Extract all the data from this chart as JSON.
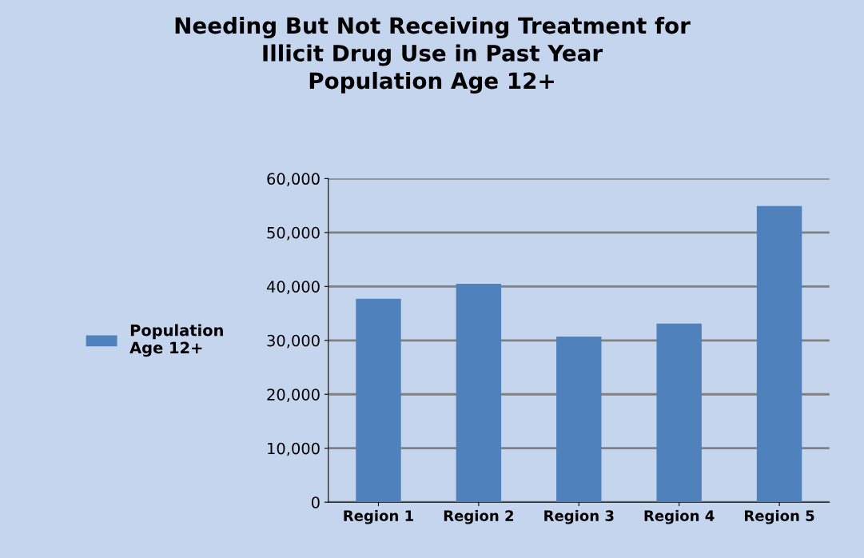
{
  "chart_data": {
    "type": "bar",
    "title": "Needing But Not Receiving Treatment for\nIllicit Drug Use in Past Year\nPopulation Age 12+",
    "categories": [
      "Region 1",
      "Region 2",
      "Region 3",
      "Region 4",
      "Region 5"
    ],
    "series": [
      {
        "name": "Population\nAge 12+",
        "color": "#4f81bd",
        "values": [
          37700,
          40500,
          30700,
          33100,
          54900
        ]
      }
    ],
    "ylim": [
      0,
      60000
    ],
    "yticks": [
      {
        "value": 0,
        "label": "0"
      },
      {
        "value": 10000,
        "label": "10,000"
      },
      {
        "value": 20000,
        "label": "20,000"
      },
      {
        "value": 30000,
        "label": "30,000"
      },
      {
        "value": 40000,
        "label": "40,000"
      },
      {
        "value": 50000,
        "label": "50,000"
      },
      {
        "value": 60000,
        "label": "60,000"
      }
    ],
    "grid": "y",
    "legend": "left"
  }
}
